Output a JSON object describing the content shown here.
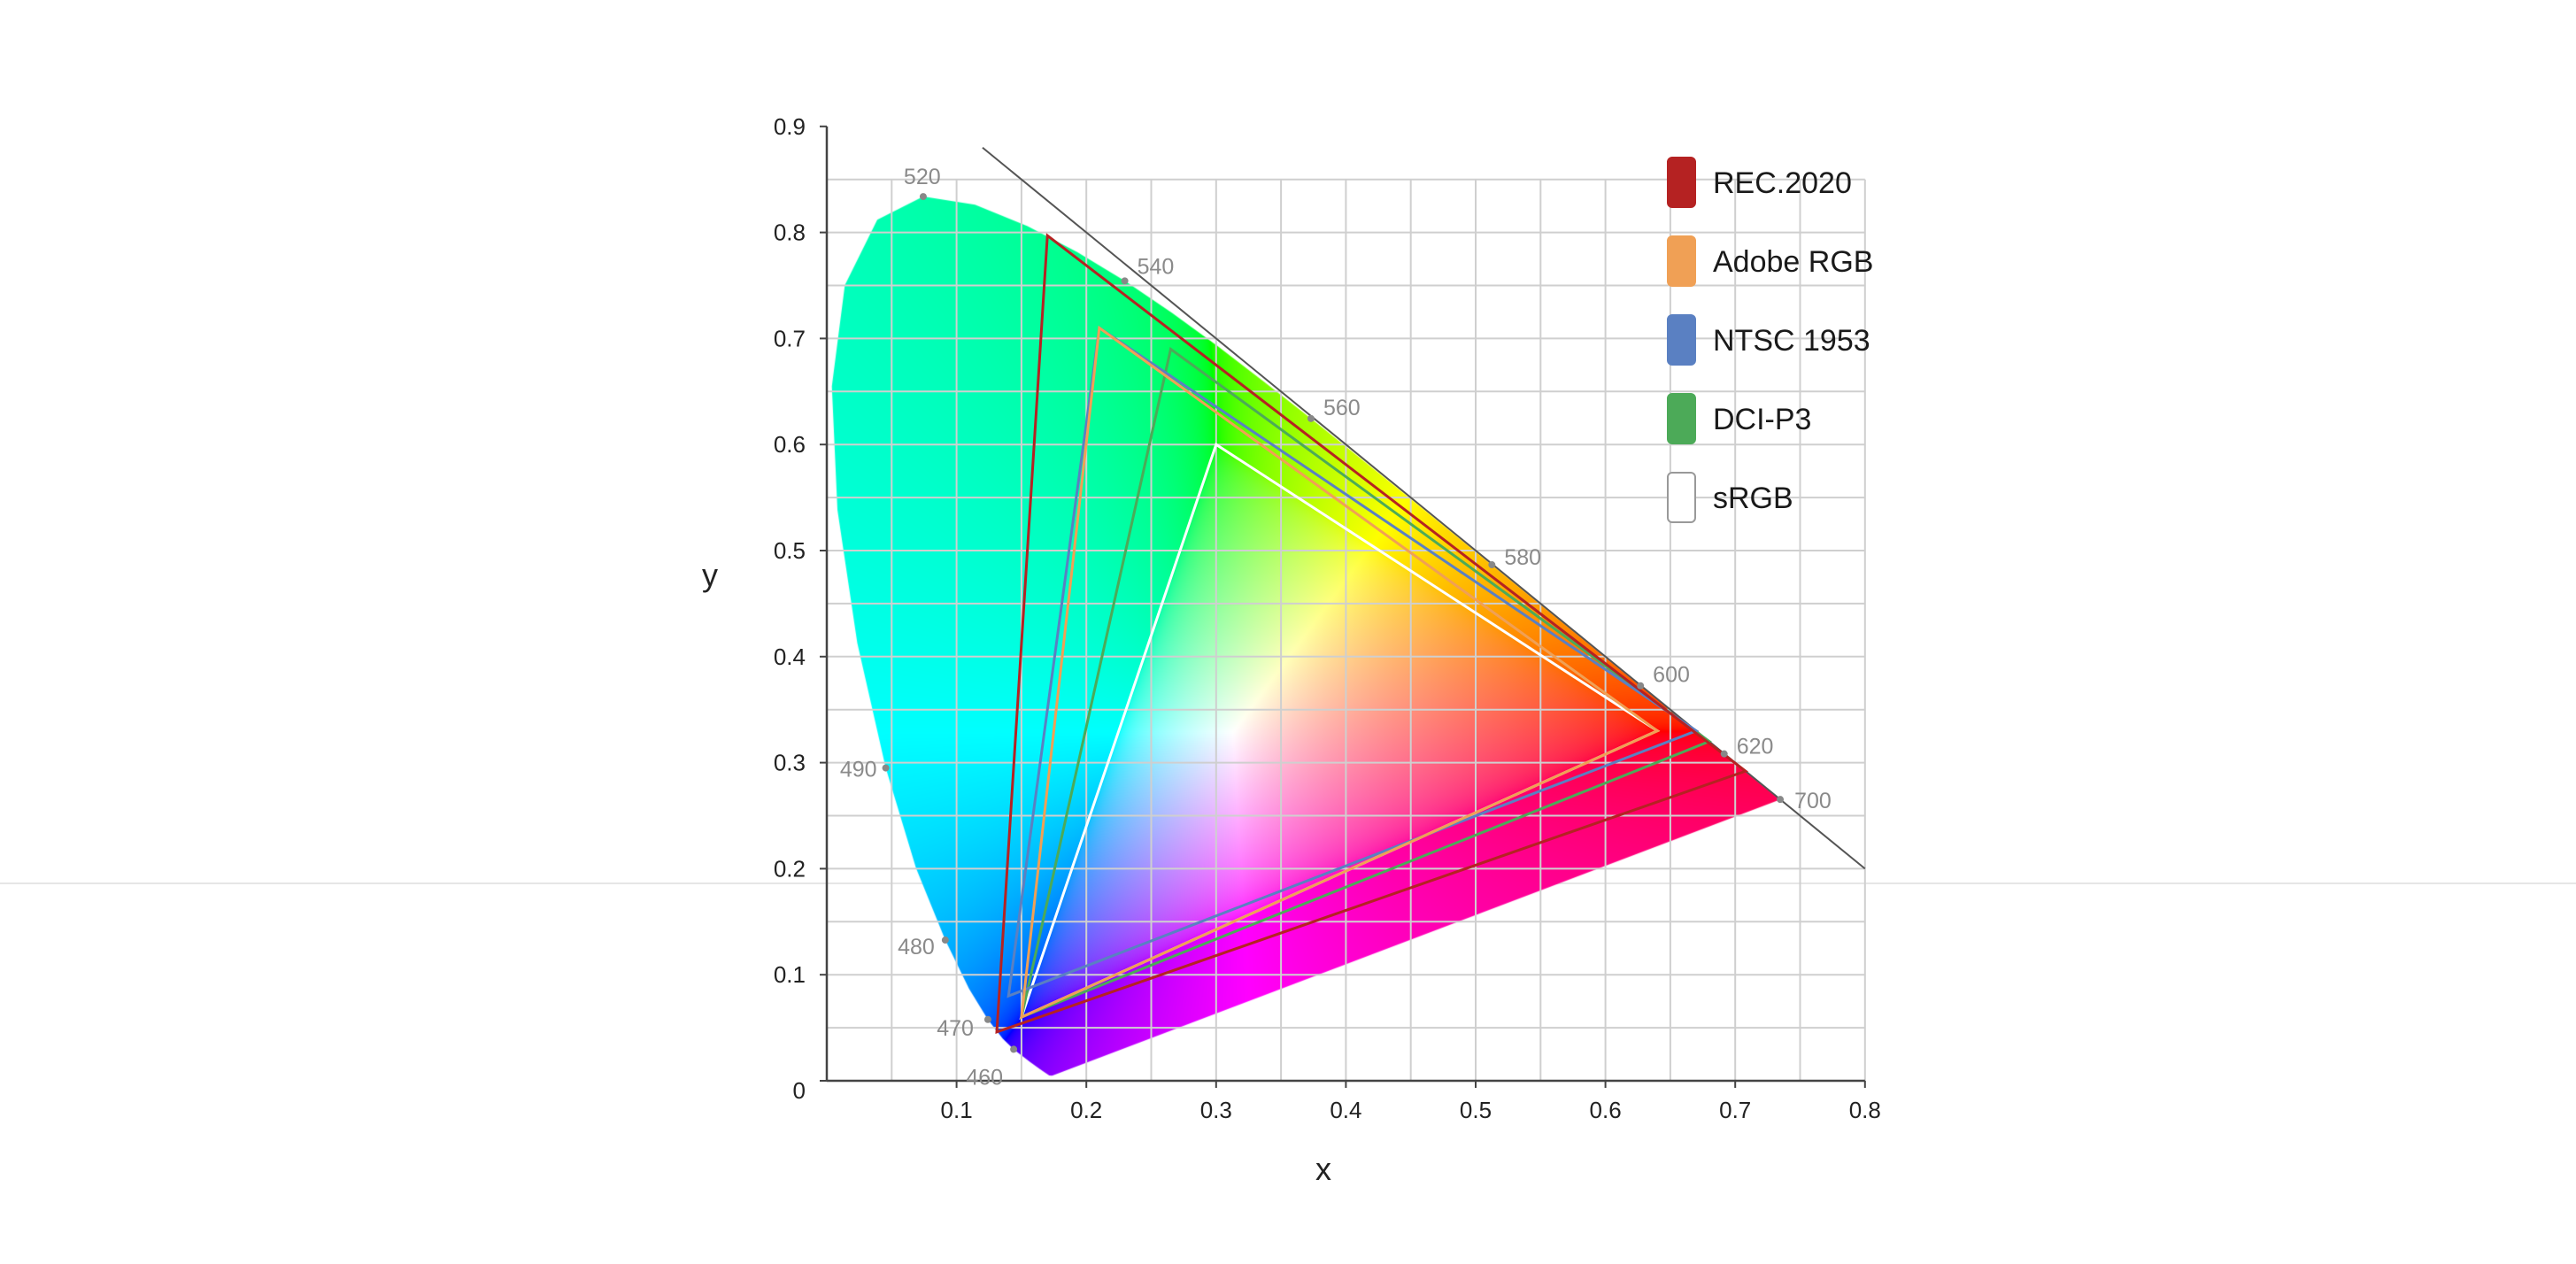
{
  "chart_data": {
    "type": "scatter",
    "title": "",
    "xlabel": "x",
    "ylabel": "y",
    "xlim": [
      0,
      0.8
    ],
    "ylim": [
      0,
      0.9
    ],
    "x_ticks": [
      "0.1",
      "0.2",
      "0.3",
      "0.4",
      "0.5",
      "0.6",
      "0.7",
      "0.8"
    ],
    "y_ticks": [
      "0",
      "0.1",
      "0.2",
      "0.3",
      "0.4",
      "0.5",
      "0.6",
      "0.7",
      "0.8",
      "0.9"
    ],
    "grid": true,
    "grid_step": 0.05,
    "legend_placement": "top-right",
    "reference_line": {
      "from": [
        0.12,
        0.88
      ],
      "to": [
        0.8,
        0.2
      ]
    },
    "wavelength_labels": [
      {
        "label": "520",
        "x": 0.0743,
        "y": 0.8338
      },
      {
        "label": "540",
        "x": 0.2296,
        "y": 0.7543
      },
      {
        "label": "560",
        "x": 0.3731,
        "y": 0.6245
      },
      {
        "label": "580",
        "x": 0.5125,
        "y": 0.4866
      },
      {
        "label": "600",
        "x": 0.627,
        "y": 0.3725
      },
      {
        "label": "620",
        "x": 0.6915,
        "y": 0.3083
      },
      {
        "label": "700",
        "x": 0.7347,
        "y": 0.2653
      },
      {
        "label": "490",
        "x": 0.0454,
        "y": 0.295
      },
      {
        "label": "480",
        "x": 0.0913,
        "y": 0.1327
      },
      {
        "label": "470",
        "x": 0.1241,
        "y": 0.0578
      },
      {
        "label": "460",
        "x": 0.144,
        "y": 0.0297
      }
    ],
    "series": [
      {
        "name": "REC.2020",
        "color": "#b52222",
        "points": [
          [
            0.708,
            0.292
          ],
          [
            0.17,
            0.797
          ],
          [
            0.131,
            0.046
          ]
        ]
      },
      {
        "name": "Adobe RGB",
        "color": "#f0a055",
        "points": [
          [
            0.64,
            0.33
          ],
          [
            0.21,
            0.71
          ],
          [
            0.15,
            0.06
          ]
        ]
      },
      {
        "name": "NTSC 1953",
        "color": "#5a80c2",
        "points": [
          [
            0.67,
            0.33
          ],
          [
            0.21,
            0.71
          ],
          [
            0.14,
            0.08
          ]
        ]
      },
      {
        "name": "DCI-P3",
        "color": "#4caa58",
        "points": [
          [
            0.68,
            0.32
          ],
          [
            0.265,
            0.69
          ],
          [
            0.15,
            0.06
          ]
        ]
      },
      {
        "name": "sRGB",
        "color": "#ffffff",
        "points": [
          [
            0.64,
            0.33
          ],
          [
            0.3,
            0.6
          ],
          [
            0.15,
            0.06
          ]
        ]
      }
    ]
  }
}
